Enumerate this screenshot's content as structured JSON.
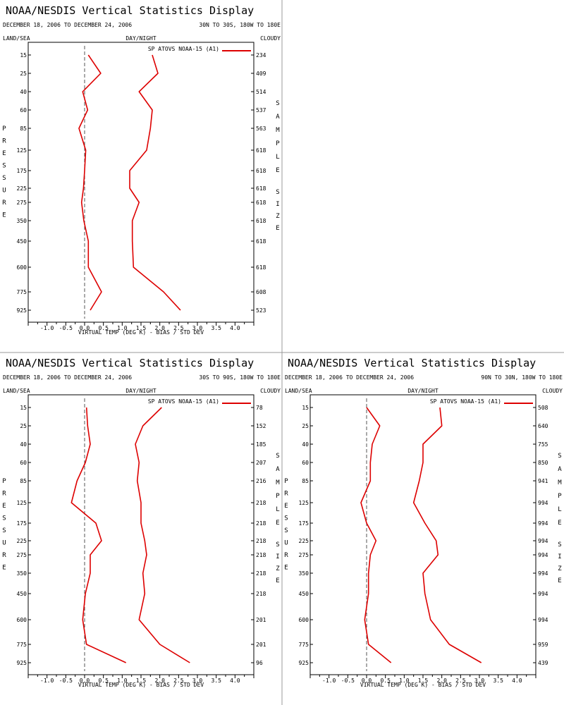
{
  "colors": {
    "series": "#dd0000",
    "axes": "#000000",
    "zero_line": "#555555",
    "divider": "#999999"
  },
  "chart_data": [
    {
      "type": "line",
      "title": "NOAA/NESDIS Vertical Statistics Display",
      "date_range": "DECEMBER 18, 2006 TO DECEMBER 24, 2006",
      "region": "30N TO 30S, 180W TO 180E",
      "header_left": "LAND/SEA",
      "header_center": "DAY/NIGHT",
      "header_right": "CLOUDY",
      "left_label": "PRESSURE",
      "right_label_1": "SAMPLE",
      "right_label_2": "SIZE",
      "xlabel": "VIRTUAL TEMP (DEG K) - BIAS / STD DEV",
      "legend": "SP ATOVS NOAA-15 (A1)",
      "xlim": [
        -1.5,
        4.5
      ],
      "x_ticks": [
        "-1.0",
        "-0.5",
        "0.0",
        "0.5",
        "1.0",
        "1.5",
        "2.0",
        "2.5",
        "3.0",
        "3.5",
        "4.0"
      ],
      "pressure_levels": [
        "15",
        "25",
        "40",
        "60",
        "85",
        "125",
        "175",
        "225",
        "275",
        "350",
        "450",
        "600",
        "775",
        "925"
      ],
      "sample_sizes": [
        "234",
        "409",
        "514",
        "537",
        "563",
        "618",
        "618",
        "618",
        "618",
        "618",
        "618",
        "618",
        "608",
        "523"
      ],
      "series": [
        {
          "name": "bias",
          "values": [
            0.1,
            0.43,
            -0.05,
            0.08,
            -0.15,
            0.03,
            0.0,
            -0.03,
            -0.08,
            -0.02,
            0.1,
            0.1,
            0.45,
            0.15
          ]
        },
        {
          "name": "std dev",
          "values": [
            1.8,
            1.95,
            1.45,
            1.8,
            1.75,
            1.65,
            1.2,
            1.2,
            1.45,
            1.27,
            1.27,
            1.3,
            2.1,
            2.55
          ]
        }
      ]
    },
    {
      "type": "line",
      "title": "NOAA/NESDIS Vertical Statistics Display",
      "date_range": "DECEMBER 18, 2006 TO DECEMBER 24, 2006",
      "region": "30S TO 90S, 180W TO 180E",
      "header_left": "LAND/SEA",
      "header_center": "DAY/NIGHT",
      "header_right": "CLOUDY",
      "left_label": "PRESSURE",
      "right_label_1": "SAMPLE",
      "right_label_2": "SIZE",
      "xlabel": "VIRTUAL TEMP (DEG K) - BIAS / STD DEV",
      "legend": "SP ATOVS NOAA-15 (A1)",
      "xlim": [
        -1.5,
        4.5
      ],
      "x_ticks": [
        "-1.0",
        "-0.5",
        "0.0",
        "0.5",
        "1.0",
        "1.5",
        "2.0",
        "2.5",
        "3.0",
        "3.5",
        "4.0"
      ],
      "pressure_levels": [
        "15",
        "25",
        "40",
        "60",
        "85",
        "125",
        "175",
        "225",
        "275",
        "350",
        "450",
        "600",
        "775",
        "925"
      ],
      "sample_sizes": [
        "78",
        "152",
        "185",
        "207",
        "216",
        "218",
        "218",
        "218",
        "218",
        "218",
        "218",
        "201",
        "201",
        "96"
      ],
      "series": [
        {
          "name": "bias",
          "values": [
            0.05,
            0.08,
            0.15,
            0.02,
            -0.2,
            -0.35,
            0.3,
            0.45,
            0.15,
            0.15,
            0.02,
            -0.05,
            0.05,
            1.1
          ]
        },
        {
          "name": "std dev",
          "values": [
            2.05,
            1.55,
            1.35,
            1.45,
            1.4,
            1.5,
            1.5,
            1.6,
            1.65,
            1.55,
            1.6,
            1.45,
            2.0,
            2.8
          ]
        }
      ]
    },
    {
      "type": "line",
      "title": "NOAA/NESDIS Vertical Statistics Display",
      "date_range": "DECEMBER 18, 2006 TO DECEMBER 24, 2006",
      "region": "90N TO 30N, 180W TO 180E",
      "header_left": "LAND/SEA",
      "header_center": "DAY/NIGHT",
      "header_right": "CLOUDY",
      "left_label": "PRESSURE",
      "right_label_1": "SAMPLE",
      "right_label_2": "SIZE",
      "xlabel": "VIRTUAL TEMP (DEG K) - BIAS / STD DEV",
      "legend": "SP ATOVS NOAA-15 (A1)",
      "xlim": [
        -1.5,
        4.5
      ],
      "x_ticks": [
        "-1.0",
        "-0.5",
        "0.0",
        "0.5",
        "1.0",
        "1.5",
        "2.0",
        "2.5",
        "3.0",
        "3.5",
        "4.0"
      ],
      "pressure_levels": [
        "15",
        "25",
        "40",
        "60",
        "85",
        "125",
        "175",
        "225",
        "275",
        "350",
        "450",
        "600",
        "775",
        "925"
      ],
      "sample_sizes": [
        "508",
        "640",
        "755",
        "850",
        "941",
        "994",
        "994",
        "994",
        "994",
        "994",
        "994",
        "994",
        "959",
        "439"
      ],
      "series": [
        {
          "name": "bias",
          "values": [
            0.0,
            0.35,
            0.15,
            0.1,
            0.1,
            -0.15,
            0.0,
            0.25,
            0.1,
            0.05,
            0.05,
            -0.05,
            0.05,
            0.65
          ]
        },
        {
          "name": "std dev",
          "values": [
            1.95,
            2.0,
            1.5,
            1.5,
            1.4,
            1.25,
            1.55,
            1.85,
            1.9,
            1.5,
            1.55,
            1.7,
            2.2,
            3.05
          ]
        }
      ]
    }
  ]
}
